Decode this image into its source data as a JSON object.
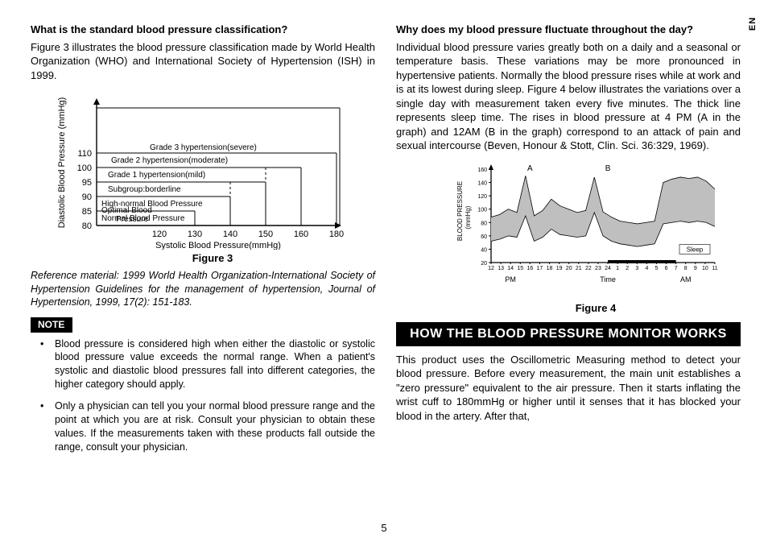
{
  "lang_tab": "EN",
  "page_number": "5",
  "left": {
    "heading": "What is the standard blood pressure classification?",
    "intro": "Figure 3 illustrates the blood pressure classification made by World Health Organization (WHO) and International Society of Hypertension (ISH) in 1999.",
    "figure3_caption": "Figure 3",
    "reference": "Reference material: 1999 World Health Organization-International Society of Hypertension Guidelines for the management of hypertension, Journal of Hypertension, 1999, 17(2): 151-183.",
    "note_label": "NOTE",
    "notes": [
      "Blood pressure is considered high when either the diastolic or systolic blood pressure value exceeds the normal range. When a patient's systolic and diastolic blood pressures fall into different categories, the higher category should apply.",
      "Only a physician can tell you your normal blood pressure range and the point at which you are at risk. Consult your physician to obtain these values. If the measurements taken with these products fall outside the range, consult your physician."
    ]
  },
  "right": {
    "heading": "Why does my blood pressure fluctuate throughout the day?",
    "para": "Individual blood pressure varies greatly both on a daily and a seasonal or temperature basis. These variations may be more pronounced in hypertensive patients. Normally the blood pressure rises while at work and is at its lowest during sleep. Figure 4 below illustrates the variations over a single day with measurement taken every five minutes. The thick line represents sleep time. The rises in blood pressure at 4 PM (A in the graph) and 12AM (B in the graph) correspond to an attack of pain and sexual intercourse  (Beven, Honour & Stott, Clin. Sci. 36:329, 1969).",
    "figure4_caption": "Figure 4",
    "section_title": "HOW  THE BLOOD PRESSURE MONITOR WORKS",
    "para2": "This product uses the Oscillometric Measuring method to detect your blood pressure. Before every measurement, the main unit establishes a \"zero pressure\" equivalent to the air pressure. Then it starts inflating the wrist cuff to 180mmHg or higher until it senses that it has blocked your blood in the artery. After that,"
  },
  "figure3": {
    "type": "step-chart",
    "y_label": "Diastolic Blood Pressure (mmHg)",
    "x_label": "Systolic Blood Pressure(mmHg)",
    "y_ticks": [
      80,
      85,
      90,
      95,
      100,
      110
    ],
    "x_ticks": [
      120,
      130,
      140,
      150,
      160,
      180
    ],
    "bands": [
      {
        "label": "Grade 3 hypertension(severe)"
      },
      {
        "label": "Grade 2 hypertension(moderate)"
      },
      {
        "label": "Grade 1 hypertension(mild)"
      },
      {
        "label": "Subgroup:borderline"
      },
      {
        "label": "High-normal Blood Pressure"
      },
      {
        "label": "Normal Blood Pressure"
      },
      {
        "label": "Optimal Blood\nPressure"
      }
    ],
    "stroke": "#000000",
    "tick_font_size": 11,
    "label_font_size": 11,
    "band_font_size": 10
  },
  "figure4": {
    "type": "line-area",
    "y_label": "BLOOD PRESSURE\n(mmHg)",
    "y_ticks": [
      20,
      40,
      60,
      80,
      100,
      120,
      140,
      160
    ],
    "x_hours": [
      12,
      13,
      14,
      15,
      16,
      17,
      18,
      19,
      20,
      21,
      22,
      23,
      24,
      1,
      2,
      3,
      4,
      5,
      6,
      7,
      8,
      9,
      10,
      11
    ],
    "pm_label": "PM",
    "am_label": "AM",
    "time_label": "Time",
    "sleep_label": "Sleep",
    "marker_A": "A",
    "marker_B": "B",
    "area_fill": "#bfbfbf",
    "stroke": "#000000",
    "tick_font_size": 7,
    "label_font_size": 8,
    "upper_series": [
      88,
      92,
      100,
      95,
      150,
      90,
      98,
      115,
      105,
      100,
      95,
      98,
      148,
      96,
      88,
      82,
      80,
      78,
      80,
      82,
      140,
      145,
      148,
      146,
      148,
      142,
      130
    ],
    "lower_series": [
      52,
      55,
      60,
      58,
      90,
      52,
      58,
      70,
      62,
      60,
      58,
      60,
      95,
      60,
      52,
      48,
      46,
      44,
      46,
      48,
      78,
      80,
      82,
      80,
      82,
      80,
      74
    ],
    "sleep_bar": {
      "from_index": 12,
      "to_index": 19
    }
  }
}
